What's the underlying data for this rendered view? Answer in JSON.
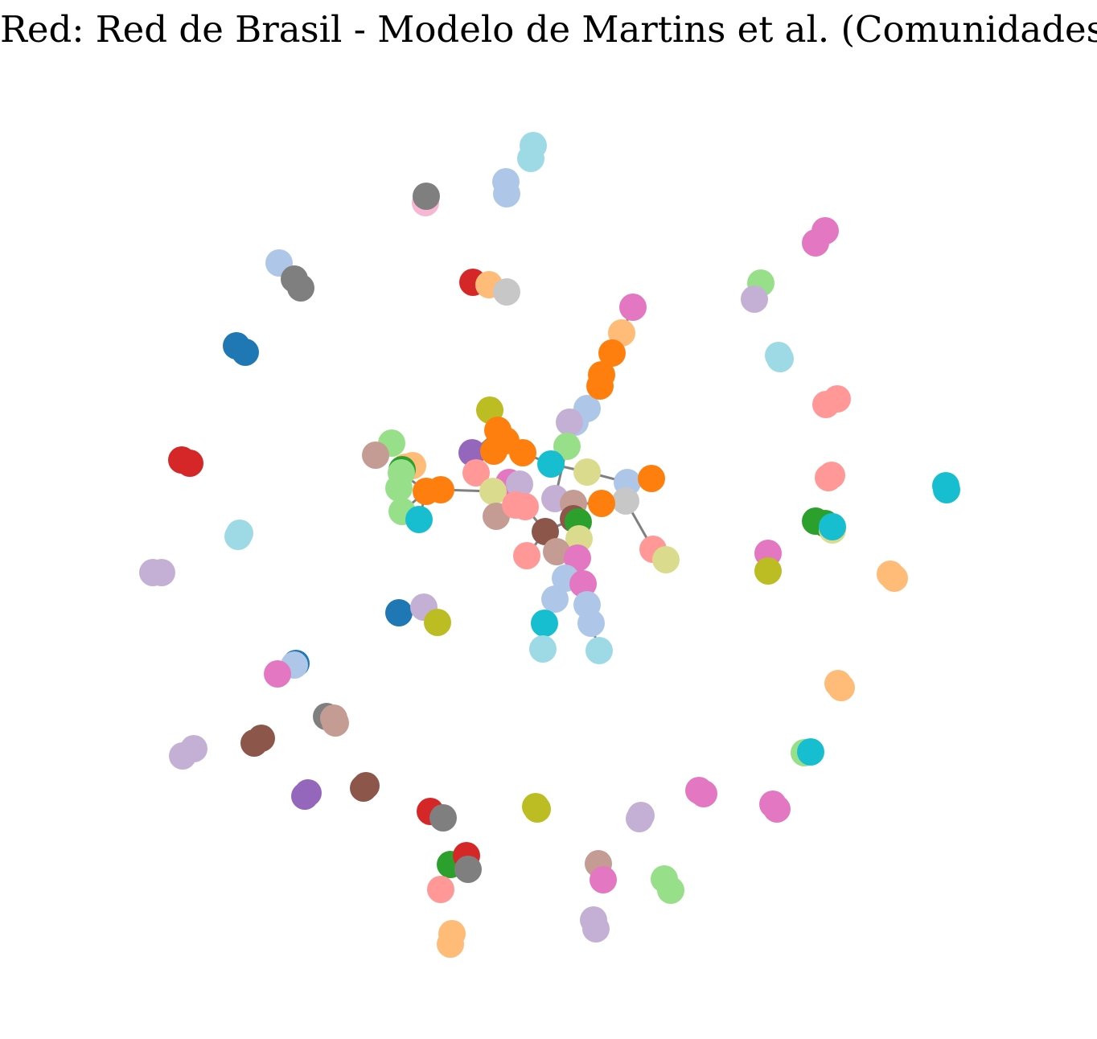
{
  "title": "Red: Red de Brasil - Modelo de Martins et al. (Comunidades)",
  "colors": {
    "edge": "#808080",
    "palette": {
      "blue": "#1f77b4",
      "light_blue": "#aec7e8",
      "orange": "#ff7f0e",
      "light_orange": "#ffbb78",
      "green": "#2ca02c",
      "light_green": "#98df8a",
      "red": "#d62728",
      "salmon": "#ff9896",
      "purple": "#9467bd",
      "lavender": "#c5b0d5",
      "brown": "#8c564b",
      "tan": "#c49c94",
      "pink": "#e377c2",
      "light_pink": "#f7b6d2",
      "gray": "#7f7f7f",
      "light_gray": "#c7c7c7",
      "olive": "#bcbd22",
      "khaki": "#dbdb8d",
      "cyan": "#17becf",
      "light_cyan": "#9edae5"
    }
  }
}
